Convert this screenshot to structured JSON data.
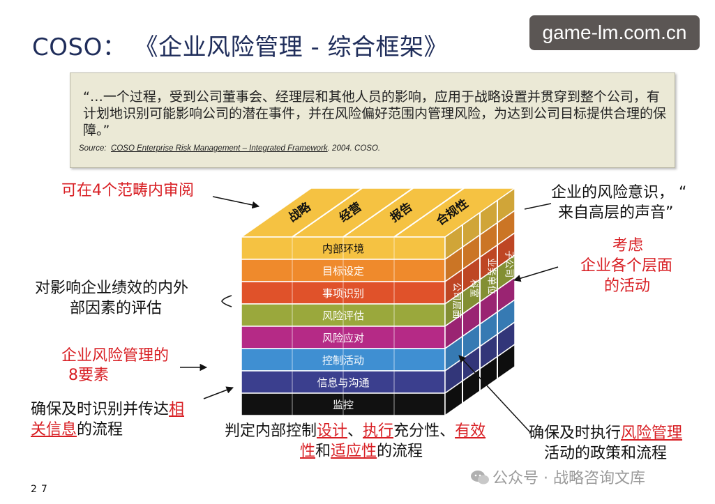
{
  "title": "COSO： 《企业风险管理 - 综合框架》",
  "watermark_top": "game-lm.com.cn",
  "quote": {
    "text": "“…一个过程，受到公司董事会、经理层和其他人员的影响，应用于战略设置并贯穿到整个公司，有计划地识别可能影响公司的潜在事件，并在风险偏好范围内管理风险，为达到公司目标提供合理的保障。”",
    "source_label": "Source:",
    "source_title": "COSO Enterprise Risk Management – Integrated Framework",
    "source_tail": ".  2004. COSO."
  },
  "cube": {
    "top_labels": [
      "战略",
      "经营",
      "报告",
      "合规性"
    ],
    "layers": [
      {
        "label": "内部环境",
        "color": "#f5c242"
      },
      {
        "label": "目标设定",
        "color": "#ef8a2c"
      },
      {
        "label": "事项识别",
        "color": "#e0522a"
      },
      {
        "label": "风险评估",
        "color": "#9aa83c"
      },
      {
        "label": "风险应对",
        "color": "#b52a86"
      },
      {
        "label": "控制活动",
        "color": "#3f8fd2"
      },
      {
        "label": "信息与沟通",
        "color": "#3b3f8e"
      },
      {
        "label": "监控",
        "color": "#111111"
      }
    ],
    "side_labels": [
      "公司层面",
      "科室",
      "业务单位",
      "子公司"
    ]
  },
  "annotations": {
    "top_left": "可在4个范畴内审阅",
    "top_right_line1": "企业的风险意识，  “",
    "top_right_line2": "来自高层的声音”",
    "right_mid_line1": "考虑",
    "right_mid_line2": "企业各个层面",
    "right_mid_line3": "的活动",
    "left_eval_line1": "对影响企业绩效的内外",
    "left_eval_line2": "部因素的评估",
    "left_eight_line1": "企业风险管理的",
    "left_eight_line2": "8要素",
    "left_info_a": "确保及时识别并传达",
    "left_info_b": "相",
    "left_info_c": "关信息",
    "left_info_d": "的流程",
    "bottom_a": "判定内部控制",
    "bottom_b": "设计",
    "bottom_c": "、",
    "bottom_d": "执行",
    "bottom_e": "充分性、",
    "bottom_f": "有效",
    "bottom_g": "性",
    "bottom_h": "和",
    "bottom_i": "适应性",
    "bottom_j": "的流程",
    "right_bottom_a": "确保及时执行",
    "right_bottom_b": "风险管理",
    "right_bottom_c": "活动的政策和流程"
  },
  "page_number": "27",
  "watermark_bottom": "公众号 · 战略咨询文库"
}
